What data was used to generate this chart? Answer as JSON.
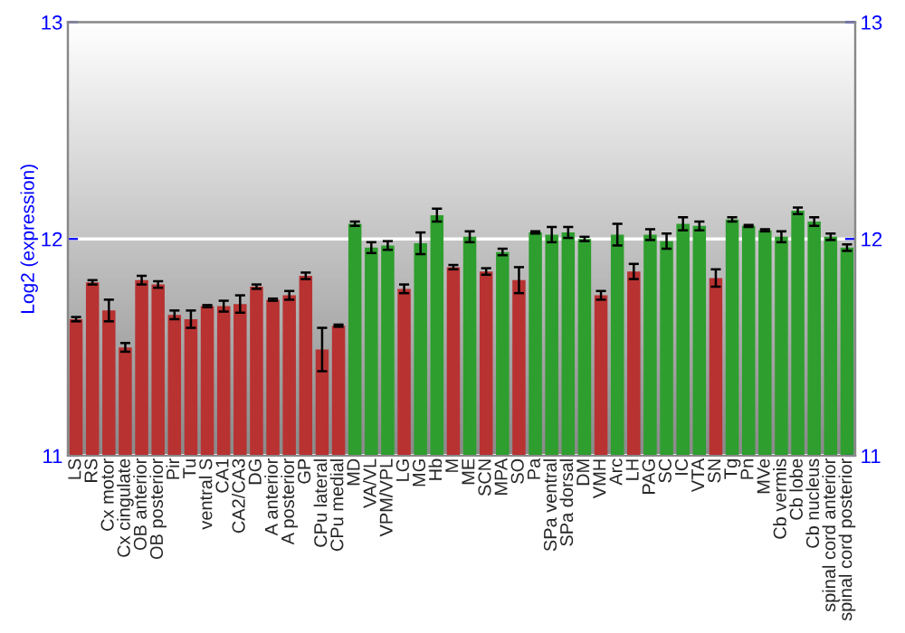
{
  "chart_data": {
    "type": "bar",
    "ylabel": "Log2 (expression)",
    "categories": [
      "LS",
      "RS",
      "Cx motor",
      "Cx cingulate",
      "OB anterior",
      "OB posterior",
      "Pir",
      "Tu",
      "ventral S",
      "CA1",
      "CA2/CA3",
      "DG",
      "A anterior",
      "A posterior",
      "GP",
      "CPu lateral",
      "CPu medial",
      "MD",
      "VA/VL",
      "VPM/VPL",
      "LG",
      "MG",
      "Hb",
      "M",
      "ME",
      "SCN",
      "MPA",
      "SO",
      "Pa",
      "SPa ventral",
      "SPa dorsal",
      "DM",
      "VMH",
      "Arc",
      "LH",
      "PAG",
      "SC",
      "IC",
      "VTA",
      "SN",
      "Tg",
      "Pn",
      "MVe",
      "Cb vermis",
      "Cb lobe",
      "Cb nucleus",
      "spinal cord anterior",
      "spinal cord posterior"
    ],
    "values": [
      11.63,
      11.8,
      11.67,
      11.5,
      11.81,
      11.79,
      11.65,
      11.63,
      11.69,
      11.69,
      11.7,
      11.78,
      11.72,
      11.74,
      11.83,
      11.49,
      11.6,
      12.07,
      11.96,
      11.97,
      11.77,
      11.98,
      12.11,
      11.87,
      12.01,
      11.85,
      11.94,
      11.81,
      12.03,
      12.02,
      12.03,
      12.0,
      11.74,
      12.02,
      11.85,
      12.02,
      11.99,
      12.07,
      12.06,
      11.82,
      12.09,
      12.06,
      12.04,
      12.01,
      12.13,
      12.08,
      12.01,
      11.96
    ],
    "errors": [
      0.01,
      0.01,
      0.05,
      0.02,
      0.02,
      0.015,
      0.02,
      0.04,
      0.005,
      0.025,
      0.04,
      0.01,
      0.005,
      0.02,
      0.015,
      0.1,
      0.005,
      0.01,
      0.025,
      0.02,
      0.02,
      0.05,
      0.03,
      0.01,
      0.025,
      0.015,
      0.015,
      0.06,
      0.005,
      0.035,
      0.025,
      0.01,
      0.02,
      0.05,
      0.035,
      0.025,
      0.035,
      0.03,
      0.02,
      0.04,
      0.01,
      0.005,
      0.005,
      0.025,
      0.015,
      0.02,
      0.015,
      0.015
    ],
    "colors": [
      "#b83232",
      "#b83232",
      "#b83232",
      "#b83232",
      "#b83232",
      "#b83232",
      "#b83232",
      "#b83232",
      "#b83232",
      "#b83232",
      "#b83232",
      "#b83232",
      "#b83232",
      "#b83232",
      "#b83232",
      "#b83232",
      "#b83232",
      "#2e9e2e",
      "#2e9e2e",
      "#2e9e2e",
      "#b83232",
      "#2e9e2e",
      "#2e9e2e",
      "#b83232",
      "#2e9e2e",
      "#b83232",
      "#2e9e2e",
      "#b83232",
      "#2e9e2e",
      "#2e9e2e",
      "#2e9e2e",
      "#2e9e2e",
      "#b83232",
      "#2e9e2e",
      "#b83232",
      "#2e9e2e",
      "#2e9e2e",
      "#2e9e2e",
      "#2e9e2e",
      "#b83232",
      "#2e9e2e",
      "#2e9e2e",
      "#2e9e2e",
      "#2e9e2e",
      "#2e9e2e",
      "#2e9e2e",
      "#2e9e2e",
      "#2e9e2e"
    ],
    "ylim": [
      11,
      13
    ],
    "yticks": [
      11,
      12,
      13
    ],
    "y2lim": [
      11,
      13
    ],
    "y2ticks": [
      11,
      12,
      13
    ],
    "grid": "y",
    "legend": false
  }
}
